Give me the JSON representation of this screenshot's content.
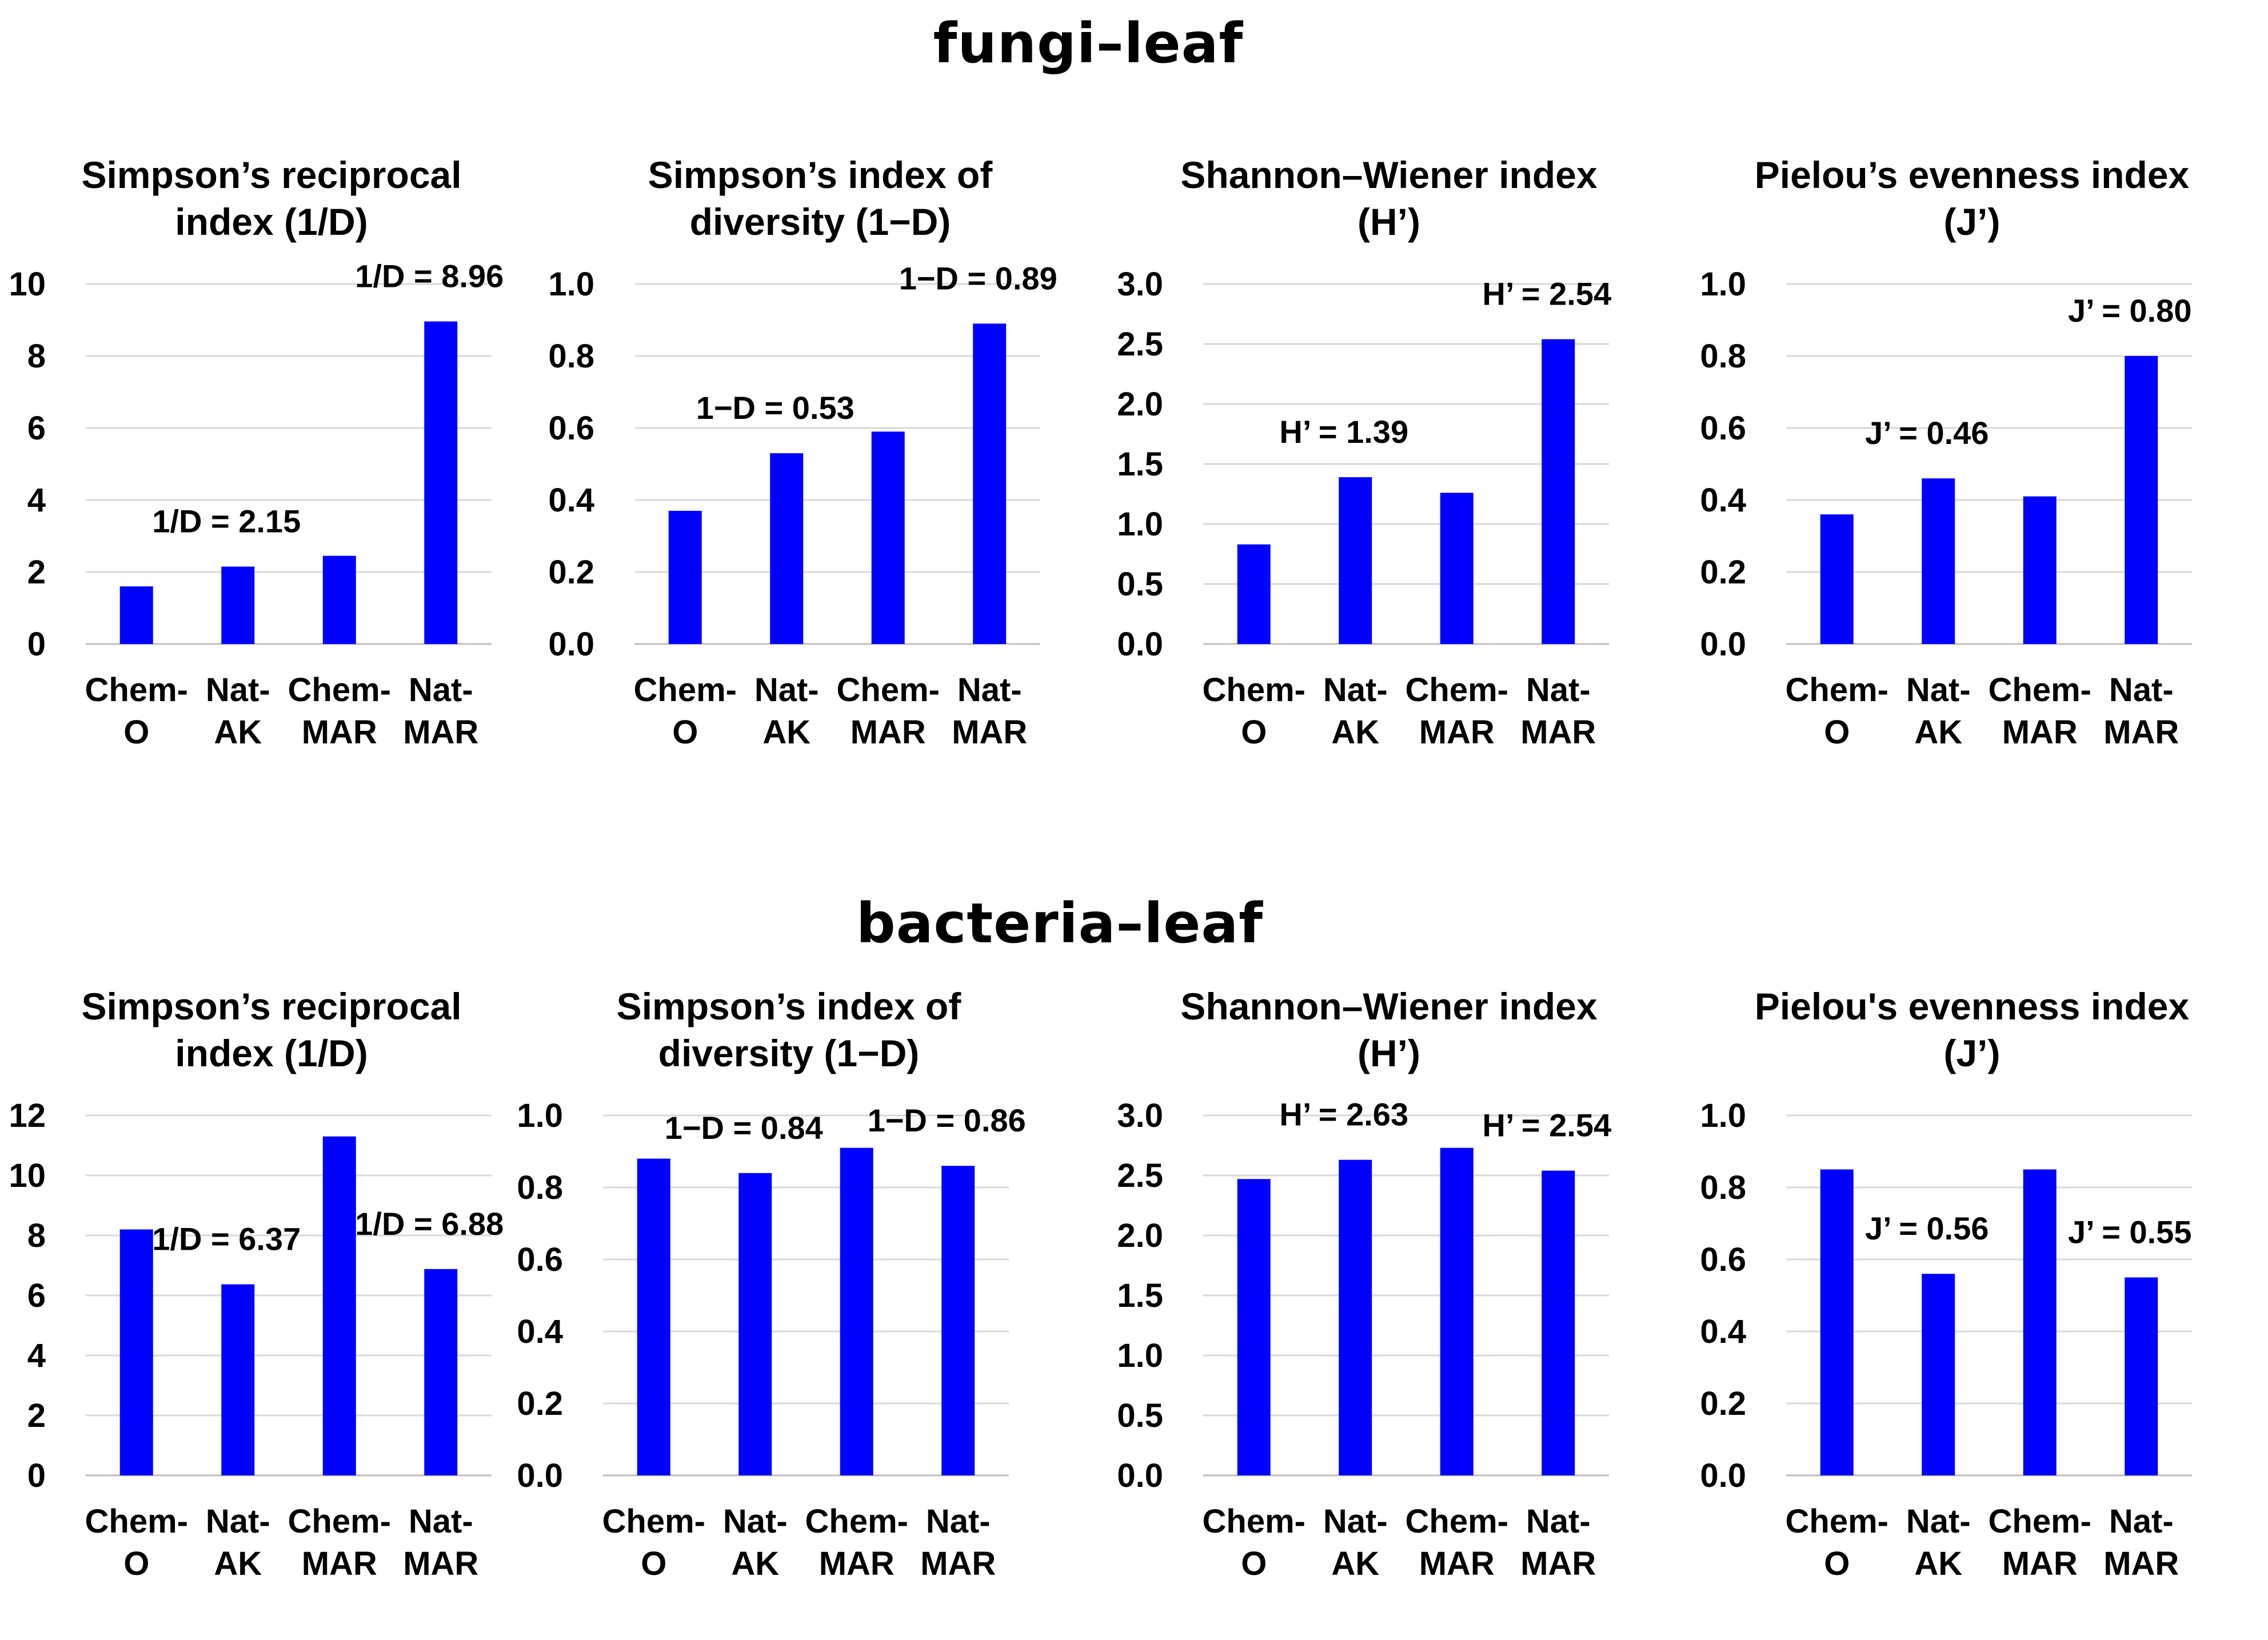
{
  "sections": {
    "fungi_title": "fungi–leaf",
    "bacteria_title": "bacteria–leaf"
  },
  "colors": {
    "bar": "#0000ff",
    "grid": "#d9d9d9",
    "axis": "#bfbfbf"
  },
  "chart_data": [
    {
      "type": "bar",
      "group": "fungi–leaf",
      "title_lines": [
        "Simpson’s reciprocal",
        "index (1/D)"
      ],
      "categories": [
        [
          "Chem-",
          "O"
        ],
        [
          "Nat-",
          "AK"
        ],
        [
          "Chem-",
          "MAR"
        ],
        [
          "Nat-",
          "MAR"
        ]
      ],
      "values": [
        1.6,
        2.15,
        2.45,
        8.96
      ],
      "ylim": [
        0,
        10
      ],
      "yticks": [
        "0",
        "2",
        "4",
        "6",
        "8",
        "10"
      ],
      "annotations": [
        {
          "index": 1,
          "text": "1/D = 2.15"
        },
        {
          "index": 3,
          "text": "1/D = 8.96"
        }
      ],
      "grid": true
    },
    {
      "type": "bar",
      "group": "fungi–leaf",
      "title_lines": [
        "Simpson’s index of",
        "diversity (1−D)"
      ],
      "categories": [
        [
          "Chem-",
          "O"
        ],
        [
          "Nat-",
          "AK"
        ],
        [
          "Chem-",
          "MAR"
        ],
        [
          "Nat-",
          "MAR"
        ]
      ],
      "values": [
        0.37,
        0.53,
        0.59,
        0.89
      ],
      "ylim": [
        0,
        1.0
      ],
      "yticks": [
        "0.0",
        "0.2",
        "0.4",
        "0.6",
        "0.8",
        "1.0"
      ],
      "annotations": [
        {
          "index": 1,
          "text": "1−D = 0.53"
        },
        {
          "index": 3,
          "text": "1−D = 0.89"
        }
      ],
      "grid": true
    },
    {
      "type": "bar",
      "group": "fungi–leaf",
      "title_lines": [
        "Shannon–Wiener index",
        "(H’)"
      ],
      "categories": [
        [
          "Chem-",
          "O"
        ],
        [
          "Nat-",
          "AK"
        ],
        [
          "Chem-",
          "MAR"
        ],
        [
          "Nat-",
          "MAR"
        ]
      ],
      "values": [
        0.83,
        1.39,
        1.26,
        2.54
      ],
      "ylim": [
        0,
        3.0
      ],
      "yticks": [
        "0.0",
        "0.5",
        "1.0",
        "1.5",
        "2.0",
        "2.5",
        "3.0"
      ],
      "annotations": [
        {
          "index": 1,
          "text": "H’ = 1.39"
        },
        {
          "index": 3,
          "text": "H’ = 2.54"
        }
      ],
      "grid": true
    },
    {
      "type": "bar",
      "group": "fungi–leaf",
      "title_lines": [
        "Pielou’s evenness index",
        "(J’)"
      ],
      "categories": [
        [
          "Chem-",
          "O"
        ],
        [
          "Nat-",
          "AK"
        ],
        [
          "Chem-",
          "MAR"
        ],
        [
          "Nat-",
          "MAR"
        ]
      ],
      "values": [
        0.36,
        0.46,
        0.41,
        0.8
      ],
      "ylim": [
        0,
        1.0
      ],
      "yticks": [
        "0.0",
        "0.2",
        "0.4",
        "0.6",
        "0.8",
        "1.0"
      ],
      "annotations": [
        {
          "index": 1,
          "text": "J’ = 0.46"
        },
        {
          "index": 3,
          "text": "J’ = 0.80"
        }
      ],
      "grid": true
    },
    {
      "type": "bar",
      "group": "bacteria–leaf",
      "title_lines": [
        "Simpson’s reciprocal",
        "index (1/D)"
      ],
      "categories": [
        [
          "Chem-",
          "O"
        ],
        [
          "Nat-",
          "AK"
        ],
        [
          "Chem-",
          "MAR"
        ],
        [
          "Nat-",
          "MAR"
        ]
      ],
      "values": [
        8.2,
        6.37,
        11.3,
        6.88
      ],
      "ylim": [
        0,
        12
      ],
      "yticks": [
        "0",
        "2",
        "4",
        "6",
        "8",
        "10",
        "12"
      ],
      "annotations": [
        {
          "index": 1,
          "text": "1/D = 6.37"
        },
        {
          "index": 3,
          "text": "1/D = 6.88"
        }
      ],
      "grid": true
    },
    {
      "type": "bar",
      "group": "bacteria–leaf",
      "title_lines": [
        "Simpson’s index of",
        "diversity (1−D)"
      ],
      "categories": [
        [
          "Chem-",
          "O"
        ],
        [
          "Nat-",
          "AK"
        ],
        [
          "Chem-",
          "MAR"
        ],
        [
          "Nat-",
          "MAR"
        ]
      ],
      "values": [
        0.88,
        0.84,
        0.91,
        0.86
      ],
      "ylim": [
        0,
        1.0
      ],
      "yticks": [
        "0.0",
        "0.2",
        "0.4",
        "0.6",
        "0.8",
        "1.0"
      ],
      "annotations": [
        {
          "index": 1,
          "text": "1−D = 0.84"
        },
        {
          "index": 3,
          "text": "1−D = 0.86"
        }
      ],
      "grid": true
    },
    {
      "type": "bar",
      "group": "bacteria–leaf",
      "title_lines": [
        "Shannon–Wiener index",
        "(H’)"
      ],
      "categories": [
        [
          "Chem-",
          "O"
        ],
        [
          "Nat-",
          "AK"
        ],
        [
          "Chem-",
          "MAR"
        ],
        [
          "Nat-",
          "MAR"
        ]
      ],
      "values": [
        2.47,
        2.63,
        2.73,
        2.54
      ],
      "ylim": [
        0,
        3.0
      ],
      "yticks": [
        "0.0",
        "0.5",
        "1.0",
        "1.5",
        "2.0",
        "2.5",
        "3.0"
      ],
      "annotations": [
        {
          "index": 1,
          "text": "H’ = 2.63"
        },
        {
          "index": 3,
          "text": "H’ = 2.54"
        }
      ],
      "grid": true
    },
    {
      "type": "bar",
      "group": "bacteria–leaf",
      "title_lines": [
        "Pielou's evenness index",
        "(J’)"
      ],
      "categories": [
        [
          "Chem-",
          "O"
        ],
        [
          "Nat-",
          "AK"
        ],
        [
          "Chem-",
          "MAR"
        ],
        [
          "Nat-",
          "MAR"
        ]
      ],
      "values": [
        0.85,
        0.56,
        0.85,
        0.55
      ],
      "ylim": [
        0,
        1.0
      ],
      "yticks": [
        "0.0",
        "0.2",
        "0.4",
        "0.6",
        "0.8",
        "1.0"
      ],
      "annotations": [
        {
          "index": 1,
          "text": "J’ = 0.56"
        },
        {
          "index": 3,
          "text": "J’ = 0.55"
        }
      ],
      "grid": true
    }
  ]
}
